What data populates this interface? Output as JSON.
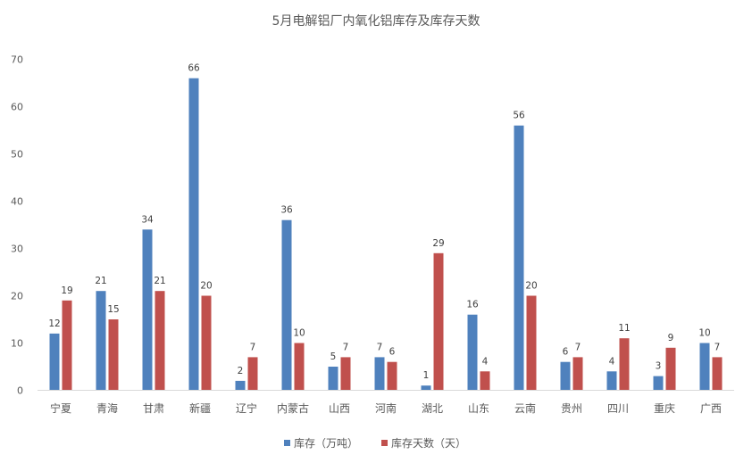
{
  "chart_data": {
    "type": "bar",
    "title": "5月电解铝厂内氧化铝库存及库存天数",
    "categories": [
      "宁夏",
      "青海",
      "甘肃",
      "新疆",
      "辽宁",
      "内蒙古",
      "山西",
      "河南",
      "湖北",
      "山东",
      "云南",
      "贵州",
      "四川",
      "重庆",
      "广西"
    ],
    "series": [
      {
        "name": "库存（万吨）",
        "color": "#4f81bd",
        "values": [
          12,
          21,
          34,
          66,
          2,
          36,
          5,
          7,
          1,
          16,
          56,
          6,
          4,
          3,
          10
        ],
        "labels": [
          "12",
          "21",
          "34",
          "66",
          "2",
          "36",
          "5",
          "7",
          "1",
          "16",
          "56",
          "6",
          "4",
          "3",
          "10"
        ]
      },
      {
        "name": "库存天数（天）",
        "color": "#c0504d",
        "values": [
          19,
          15,
          21,
          20,
          7,
          10,
          7,
          6,
          29,
          4,
          20,
          7,
          11,
          9,
          7
        ],
        "labels": [
          "19",
          "15",
          "21",
          "20",
          "7",
          "10",
          "7",
          "6",
          "29",
          "4",
          "20",
          "7",
          "11",
          "9",
          "7"
        ]
      }
    ],
    "yticks": [
      "0",
      "10",
      "20",
      "30",
      "40",
      "50",
      "60",
      "70"
    ],
    "ylim": [
      0,
      70
    ],
    "grid": false,
    "legend": "bottom"
  }
}
